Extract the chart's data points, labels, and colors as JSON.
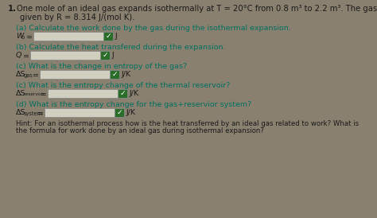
{
  "background_color": "#8a8070",
  "fig_width": 4.74,
  "fig_height": 2.74,
  "dpi": 100,
  "number": "1.",
  "title_line1": "One mole of an ideal gas expands isothermally at T = 20°C from 0.8 m³ to 2.2 m³. The gas constant is",
  "title_line2": "given by R = 8.314 J/(mol K).",
  "part_a_label": "(a) Calculate the work done by the gas during the isothermal expansion.",
  "part_b_label": "(b) Calculate the heat transfered during the expansion.",
  "part_c_label": "(c) What is the change in entropy of the gas?",
  "part_c2_label": "(c) What is the entropy change of the thermal reservoir?",
  "part_d_label": "(d) What is the entropy change for the gas+reservior system?",
  "hint_line1": "Hint: For an isothermal process how is the heat transferred by an ideal gas related to work? What is",
  "hint_line2": "the formula for work done by an ideal gas during isothermal expansion?",
  "text_color": "#1a1a1a",
  "teal_color": "#007060",
  "box_fill": "#d0cfc0",
  "box_edge": "#888888",
  "check_green": "#2a6e2a",
  "check_text": "#ffffff"
}
